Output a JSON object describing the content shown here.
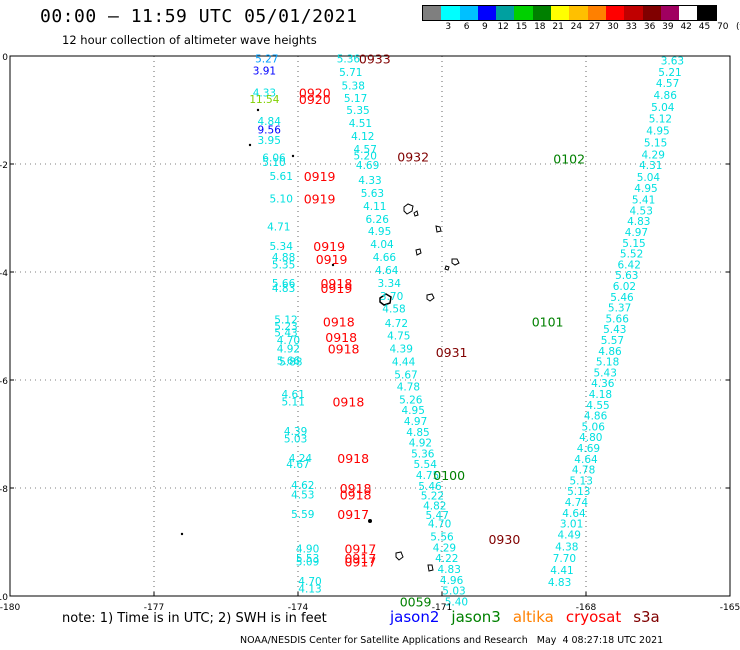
{
  "header": {
    "title": "00:00 — 11:59 UTC 05/01/2021",
    "subtitle": "12 hour collection of altimeter wave heights"
  },
  "colorbar": {
    "unit": "(ft)",
    "colors": [
      "#7f7f7f",
      "#00ffff",
      "#00c0ff",
      "#0000ff",
      "#00a0a0",
      "#00d000",
      "#008000",
      "#ffff00",
      "#ffc000",
      "#ff8000",
      "#ff0000",
      "#c00000",
      "#800000",
      "#a00060",
      "#ffffff",
      "#000000"
    ],
    "labels": [
      "3",
      "6",
      "9",
      "12",
      "15",
      "18",
      "21",
      "24",
      "27",
      "30",
      "33",
      "36",
      "39",
      "42",
      "45",
      "70"
    ]
  },
  "note": "note: 1) Time is in UTC; 2) SWH is in feet",
  "missions": [
    {
      "name": "jason2",
      "color": "#0000ff"
    },
    {
      "name": "jason3",
      "color": "#008000"
    },
    {
      "name": "altika",
      "color": "#ff8000"
    },
    {
      "name": "cryosat",
      "color": "#ff0000"
    },
    {
      "name": "s3a",
      "color": "#800000"
    }
  ],
  "credit": "NOAA/NESDIS Center for Satellite Applications and Research   May  4 08:27:18 UTC 2021",
  "chart_data": {
    "type": "scatter",
    "xlim": [
      -180,
      -165
    ],
    "ylim": [
      -10,
      0
    ],
    "xticks": [
      -180,
      -177,
      -174,
      -171,
      -168,
      -165
    ],
    "yticks": [
      0,
      -2,
      -4,
      -6,
      -8,
      -10
    ],
    "xtick_labels": [
      "-180",
      "-177",
      "-174",
      "-171",
      "-168",
      "-165"
    ],
    "ytick_labels": [
      "0",
      "-2",
      "-4",
      "-6",
      "-8",
      "-10"
    ],
    "grid": "dotted",
    "swh_colors": {
      "cyan": "#00e0e0",
      "lightblue": "#00a0ff",
      "blue": "#0000ff",
      "green": "#80d000"
    },
    "swh_points": [
      {
        "x": -174.65,
        "y": -0.05,
        "v": "5.27",
        "c": "lightblue"
      },
      {
        "x": -174.7,
        "y": -0.27,
        "v": "3.91",
        "c": "blue"
      },
      {
        "x": -174.7,
        "y": -0.68,
        "v": "4.33",
        "c": "cyan"
      },
      {
        "x": -174.7,
        "y": -0.8,
        "v": "11.54",
        "c": "green"
      },
      {
        "x": -174.6,
        "y": -1.2,
        "v": "4.84",
        "c": "cyan"
      },
      {
        "x": -174.6,
        "y": -1.36,
        "v": "9.56",
        "c": "blue"
      },
      {
        "x": -174.6,
        "y": -1.56,
        "v": "3.95",
        "c": "cyan"
      },
      {
        "x": -174.5,
        "y": -1.88,
        "v": "6.06",
        "c": "cyan"
      },
      {
        "x": -174.5,
        "y": -1.96,
        "v": "5.10",
        "c": "cyan"
      },
      {
        "x": -174.35,
        "y": -2.22,
        "v": "5.61",
        "c": "cyan"
      },
      {
        "x": -174.35,
        "y": -2.64,
        "v": "5.10",
        "c": "cyan"
      },
      {
        "x": -174.4,
        "y": -3.16,
        "v": "4.71",
        "c": "cyan"
      },
      {
        "x": -174.35,
        "y": -3.52,
        "v": "5.34",
        "c": "cyan"
      },
      {
        "x": -174.3,
        "y": -3.72,
        "v": "4.88",
        "c": "cyan"
      },
      {
        "x": -174.3,
        "y": -3.86,
        "v": "5.35",
        "c": "cyan"
      },
      {
        "x": -174.3,
        "y": -4.2,
        "v": "5.66",
        "c": "cyan"
      },
      {
        "x": -174.3,
        "y": -4.3,
        "v": "4.83",
        "c": "cyan"
      },
      {
        "x": -174.25,
        "y": -4.88,
        "v": "5.12",
        "c": "cyan"
      },
      {
        "x": -174.25,
        "y": -5.0,
        "v": "5.23",
        "c": "cyan"
      },
      {
        "x": -174.25,
        "y": -5.12,
        "v": "5.43",
        "c": "cyan"
      },
      {
        "x": -174.2,
        "y": -5.26,
        "v": "4.70",
        "c": "cyan"
      },
      {
        "x": -174.2,
        "y": -5.42,
        "v": "4.92",
        "c": "cyan"
      },
      {
        "x": -174.2,
        "y": -5.64,
        "v": "5.66",
        "c": "cyan"
      },
      {
        "x": -174.15,
        "y": -5.66,
        "v": "5.88",
        "c": "cyan"
      },
      {
        "x": -174.1,
        "y": -6.26,
        "v": "4.61",
        "c": "cyan"
      },
      {
        "x": -174.1,
        "y": -6.4,
        "v": "5.11",
        "c": "cyan"
      },
      {
        "x": -174.05,
        "y": -6.94,
        "v": "4.39",
        "c": "cyan"
      },
      {
        "x": -174.05,
        "y": -7.08,
        "v": "5.03",
        "c": "cyan"
      },
      {
        "x": -173.95,
        "y": -7.44,
        "v": "4.24",
        "c": "cyan"
      },
      {
        "x": -174.0,
        "y": -7.56,
        "v": "4.67",
        "c": "cyan"
      },
      {
        "x": -173.9,
        "y": -7.94,
        "v": "4.62",
        "c": "cyan"
      },
      {
        "x": -173.9,
        "y": -8.12,
        "v": "4.53",
        "c": "cyan"
      },
      {
        "x": -173.9,
        "y": -8.48,
        "v": "5.59",
        "c": "cyan"
      },
      {
        "x": -173.8,
        "y": -9.12,
        "v": "4.90",
        "c": "cyan"
      },
      {
        "x": -173.8,
        "y": -9.3,
        "v": "5.53",
        "c": "cyan"
      },
      {
        "x": -173.8,
        "y": -9.36,
        "v": "5.09",
        "c": "cyan"
      },
      {
        "x": -173.75,
        "y": -9.72,
        "v": "4.70",
        "c": "cyan"
      },
      {
        "x": -173.75,
        "y": -9.86,
        "v": "4.13",
        "c": "cyan"
      },
      {
        "x": -172.95,
        "y": -0.05,
        "v": "5.36",
        "c": "cyan"
      },
      {
        "x": -172.9,
        "y": -0.3,
        "v": "5.71",
        "c": "cyan"
      },
      {
        "x": -172.85,
        "y": -0.55,
        "v": "5.38",
        "c": "cyan"
      },
      {
        "x": -172.8,
        "y": -0.78,
        "v": "5.17",
        "c": "cyan"
      },
      {
        "x": -172.75,
        "y": -1.0,
        "v": "5.35",
        "c": "cyan"
      },
      {
        "x": -172.7,
        "y": -1.24,
        "v": "4.51",
        "c": "cyan"
      },
      {
        "x": -172.65,
        "y": -1.48,
        "v": "4.12",
        "c": "cyan"
      },
      {
        "x": -172.6,
        "y": -1.72,
        "v": "4.57",
        "c": "cyan"
      },
      {
        "x": -172.6,
        "y": -1.84,
        "v": "5.20",
        "c": "cyan"
      },
      {
        "x": -172.55,
        "y": -2.02,
        "v": "4.69",
        "c": "cyan"
      },
      {
        "x": -172.5,
        "y": -2.3,
        "v": "4.33",
        "c": "cyan"
      },
      {
        "x": -172.45,
        "y": -2.54,
        "v": "5.63",
        "c": "cyan"
      },
      {
        "x": -172.4,
        "y": -2.78,
        "v": "4.11",
        "c": "cyan"
      },
      {
        "x": -172.35,
        "y": -3.02,
        "v": "6.26",
        "c": "cyan"
      },
      {
        "x": -172.3,
        "y": -3.24,
        "v": "4.95",
        "c": "cyan"
      },
      {
        "x": -172.25,
        "y": -3.48,
        "v": "4.04",
        "c": "cyan"
      },
      {
        "x": -172.2,
        "y": -3.72,
        "v": "4.66",
        "c": "cyan"
      },
      {
        "x": -172.15,
        "y": -3.96,
        "v": "4.64",
        "c": "cyan"
      },
      {
        "x": -172.1,
        "y": -4.2,
        "v": "3.34",
        "c": "cyan"
      },
      {
        "x": -172.05,
        "y": -4.44,
        "v": "3.70",
        "c": "cyan"
      },
      {
        "x": -172.0,
        "y": -4.68,
        "v": "4.58",
        "c": "cyan"
      },
      {
        "x": -171.95,
        "y": -4.94,
        "v": "4.72",
        "c": "cyan"
      },
      {
        "x": -171.9,
        "y": -5.18,
        "v": "4.75",
        "c": "cyan"
      },
      {
        "x": -171.85,
        "y": -5.42,
        "v": "4.39",
        "c": "cyan"
      },
      {
        "x": -171.8,
        "y": -5.66,
        "v": "4.44",
        "c": "cyan"
      },
      {
        "x": -171.75,
        "y": -5.9,
        "v": "5.67",
        "c": "cyan"
      },
      {
        "x": -171.7,
        "y": -6.12,
        "v": "4.78",
        "c": "cyan"
      },
      {
        "x": -171.65,
        "y": -6.36,
        "v": "5.26",
        "c": "cyan"
      },
      {
        "x": -171.6,
        "y": -6.56,
        "v": "4.95",
        "c": "cyan"
      },
      {
        "x": -171.55,
        "y": -6.76,
        "v": "4.97",
        "c": "cyan"
      },
      {
        "x": -171.5,
        "y": -6.96,
        "v": "4.85",
        "c": "cyan"
      },
      {
        "x": -171.45,
        "y": -7.16,
        "v": "4.92",
        "c": "cyan"
      },
      {
        "x": -171.4,
        "y": -7.36,
        "v": "5.36",
        "c": "cyan"
      },
      {
        "x": -171.35,
        "y": -7.56,
        "v": "5.54",
        "c": "cyan"
      },
      {
        "x": -171.3,
        "y": -7.76,
        "v": "4.75",
        "c": "cyan"
      },
      {
        "x": -171.25,
        "y": -7.96,
        "v": "5.46",
        "c": "cyan"
      },
      {
        "x": -171.2,
        "y": -8.14,
        "v": "5.22",
        "c": "cyan"
      },
      {
        "x": -171.15,
        "y": -8.32,
        "v": "4.82",
        "c": "cyan"
      },
      {
        "x": -171.1,
        "y": -8.5,
        "v": "5.47",
        "c": "cyan"
      },
      {
        "x": -171.05,
        "y": -8.66,
        "v": "4.70",
        "c": "cyan"
      },
      {
        "x": -171.0,
        "y": -8.9,
        "v": "5.56",
        "c": "cyan"
      },
      {
        "x": -170.95,
        "y": -9.1,
        "v": "4.29",
        "c": "cyan"
      },
      {
        "x": -170.9,
        "y": -9.3,
        "v": "4.22",
        "c": "cyan"
      },
      {
        "x": -170.85,
        "y": -9.5,
        "v": "4.83",
        "c": "cyan"
      },
      {
        "x": -170.8,
        "y": -9.7,
        "v": "4.96",
        "c": "cyan"
      },
      {
        "x": -170.75,
        "y": -9.9,
        "v": "5.03",
        "c": "cyan"
      },
      {
        "x": -170.7,
        "y": -10.1,
        "v": "5.40",
        "c": "cyan"
      },
      {
        "x": -166.2,
        "y": -0.08,
        "v": "3.63",
        "c": "cyan"
      },
      {
        "x": -166.25,
        "y": -0.3,
        "v": "5.21",
        "c": "cyan"
      },
      {
        "x": -166.3,
        "y": -0.5,
        "v": "4.57",
        "c": "cyan"
      },
      {
        "x": -166.35,
        "y": -0.72,
        "v": "4.86",
        "c": "cyan"
      },
      {
        "x": -166.4,
        "y": -0.94,
        "v": "5.04",
        "c": "cyan"
      },
      {
        "x": -166.45,
        "y": -1.16,
        "v": "5.12",
        "c": "cyan"
      },
      {
        "x": -166.5,
        "y": -1.38,
        "v": "4.95",
        "c": "cyan"
      },
      {
        "x": -166.55,
        "y": -1.6,
        "v": "5.15",
        "c": "cyan"
      },
      {
        "x": -166.6,
        "y": -1.82,
        "v": "4.29",
        "c": "cyan"
      },
      {
        "x": -166.65,
        "y": -2.02,
        "v": "4.31",
        "c": "cyan"
      },
      {
        "x": -166.7,
        "y": -2.24,
        "v": "5.04",
        "c": "cyan"
      },
      {
        "x": -166.75,
        "y": -2.44,
        "v": "4.95",
        "c": "cyan"
      },
      {
        "x": -166.8,
        "y": -2.66,
        "v": "5.41",
        "c": "cyan"
      },
      {
        "x": -166.85,
        "y": -2.86,
        "v": "4.53",
        "c": "cyan"
      },
      {
        "x": -166.9,
        "y": -3.06,
        "v": "4.83",
        "c": "cyan"
      },
      {
        "x": -166.95,
        "y": -3.26,
        "v": "4.97",
        "c": "cyan"
      },
      {
        "x": -167.0,
        "y": -3.46,
        "v": "5.15",
        "c": "cyan"
      },
      {
        "x": -167.05,
        "y": -3.66,
        "v": "5.52",
        "c": "cyan"
      },
      {
        "x": -167.1,
        "y": -3.86,
        "v": "6.42",
        "c": "cyan"
      },
      {
        "x": -167.15,
        "y": -4.06,
        "v": "5.63",
        "c": "cyan"
      },
      {
        "x": -167.2,
        "y": -4.26,
        "v": "6.02",
        "c": "cyan"
      },
      {
        "x": -167.25,
        "y": -4.46,
        "v": "5.46",
        "c": "cyan"
      },
      {
        "x": -167.3,
        "y": -4.66,
        "v": "5.37",
        "c": "cyan"
      },
      {
        "x": -167.35,
        "y": -4.86,
        "v": "5.66",
        "c": "cyan"
      },
      {
        "x": -167.4,
        "y": -5.06,
        "v": "5.43",
        "c": "cyan"
      },
      {
        "x": -167.45,
        "y": -5.26,
        "v": "5.57",
        "c": "cyan"
      },
      {
        "x": -167.5,
        "y": -5.46,
        "v": "4.86",
        "c": "cyan"
      },
      {
        "x": -167.55,
        "y": -5.66,
        "v": "5.18",
        "c": "cyan"
      },
      {
        "x": -167.6,
        "y": -5.86,
        "v": "5.43",
        "c": "cyan"
      },
      {
        "x": -167.65,
        "y": -6.06,
        "v": "4.36",
        "c": "cyan"
      },
      {
        "x": -167.7,
        "y": -6.26,
        "v": "4.18",
        "c": "cyan"
      },
      {
        "x": -167.75,
        "y": -6.46,
        "v": "4.55",
        "c": "cyan"
      },
      {
        "x": -167.8,
        "y": -6.66,
        "v": "4.86",
        "c": "cyan"
      },
      {
        "x": -167.85,
        "y": -6.86,
        "v": "5.06",
        "c": "cyan"
      },
      {
        "x": -167.9,
        "y": -7.06,
        "v": "4.80",
        "c": "cyan"
      },
      {
        "x": -167.95,
        "y": -7.26,
        "v": "4.69",
        "c": "cyan"
      },
      {
        "x": -168.0,
        "y": -7.46,
        "v": "4.64",
        "c": "cyan"
      },
      {
        "x": -168.05,
        "y": -7.66,
        "v": "4.78",
        "c": "cyan"
      },
      {
        "x": -168.1,
        "y": -7.86,
        "v": "5.13",
        "c": "cyan"
      },
      {
        "x": -168.15,
        "y": -8.06,
        "v": "5.13",
        "c": "cyan"
      },
      {
        "x": -168.2,
        "y": -8.26,
        "v": "4.74",
        "c": "cyan"
      },
      {
        "x": -168.25,
        "y": -8.46,
        "v": "4.64",
        "c": "cyan"
      },
      {
        "x": -168.3,
        "y": -8.66,
        "v": "3.01",
        "c": "cyan"
      },
      {
        "x": -168.35,
        "y": -8.86,
        "v": "4.49",
        "c": "cyan"
      },
      {
        "x": -168.4,
        "y": -9.08,
        "v": "4.38",
        "c": "cyan"
      },
      {
        "x": -168.45,
        "y": -9.3,
        "v": "7.70",
        "c": "cyan"
      },
      {
        "x": -168.5,
        "y": -9.52,
        "v": "4.41",
        "c": "cyan"
      },
      {
        "x": -168.55,
        "y": -9.74,
        "v": "4.83",
        "c": "cyan"
      }
    ],
    "time_labels": [
      {
        "x": -172.4,
        "y": -0.05,
        "t": "0933",
        "mission": "s3a"
      },
      {
        "x": -173.65,
        "y": -0.68,
        "t": "0920",
        "mission": "cryosat"
      },
      {
        "x": -173.65,
        "y": -0.8,
        "t": "0920",
        "mission": "cryosat"
      },
      {
        "x": -171.6,
        "y": -1.86,
        "t": "0932",
        "mission": "s3a"
      },
      {
        "x": -168.35,
        "y": -1.9,
        "t": "0102",
        "mission": "jason3"
      },
      {
        "x": -173.55,
        "y": -2.22,
        "t": "0919",
        "mission": "cryosat"
      },
      {
        "x": -173.55,
        "y": -2.64,
        "t": "0919",
        "mission": "cryosat"
      },
      {
        "x": -173.35,
        "y": -3.52,
        "t": "0919",
        "mission": "cryosat"
      },
      {
        "x": -173.3,
        "y": -3.76,
        "t": "0919",
        "mission": "cryosat"
      },
      {
        "x": -173.2,
        "y": -4.2,
        "t": "0918",
        "mission": "cryosat"
      },
      {
        "x": -173.2,
        "y": -4.3,
        "t": "0919",
        "mission": "cryosat"
      },
      {
        "x": -173.15,
        "y": -4.92,
        "t": "0918",
        "mission": "cryosat"
      },
      {
        "x": -173.1,
        "y": -5.2,
        "t": "0918",
        "mission": "cryosat"
      },
      {
        "x": -173.05,
        "y": -5.42,
        "t": "0918",
        "mission": "cryosat"
      },
      {
        "x": -168.8,
        "y": -4.92,
        "t": "0101",
        "mission": "jason3"
      },
      {
        "x": -170.8,
        "y": -5.48,
        "t": "0931",
        "mission": "s3a"
      },
      {
        "x": -172.95,
        "y": -6.4,
        "t": "0918",
        "mission": "cryosat"
      },
      {
        "x": -172.85,
        "y": -7.44,
        "t": "0918",
        "mission": "cryosat"
      },
      {
        "x": -170.85,
        "y": -7.76,
        "t": "0100",
        "mission": "jason3"
      },
      {
        "x": -172.8,
        "y": -8.0,
        "t": "0918",
        "mission": "cryosat"
      },
      {
        "x": -172.8,
        "y": -8.12,
        "t": "0918",
        "mission": "cryosat"
      },
      {
        "x": -172.85,
        "y": -8.48,
        "t": "0917",
        "mission": "cryosat"
      },
      {
        "x": -169.7,
        "y": -8.94,
        "t": "0930",
        "mission": "s3a"
      },
      {
        "x": -172.7,
        "y": -9.12,
        "t": "0917",
        "mission": "cryosat"
      },
      {
        "x": -172.7,
        "y": -9.3,
        "t": "0917",
        "mission": "cryosat"
      },
      {
        "x": -172.7,
        "y": -9.36,
        "t": "0917",
        "mission": "cryosat"
      },
      {
        "x": -171.55,
        "y": -10.1,
        "t": "0059",
        "mission": "jason3"
      }
    ],
    "time_label_colors": {
      "s3a": "#800000",
      "cryosat": "#ff0000",
      "jason3": "#008000"
    }
  }
}
